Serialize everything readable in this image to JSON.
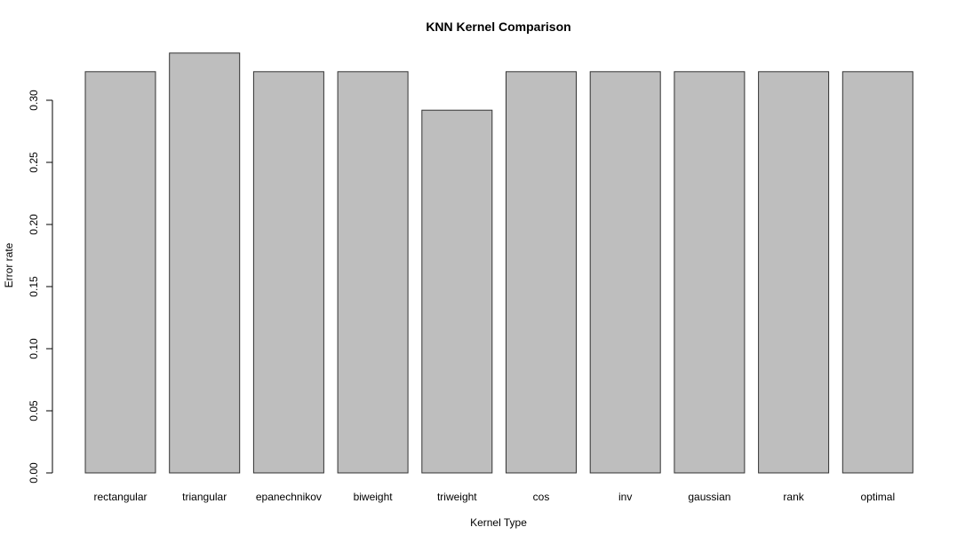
{
  "chart_data": {
    "type": "bar",
    "title": "KNN Kernel Comparison",
    "xlabel": "Kernel Type",
    "ylabel": "Error rate",
    "categories": [
      "rectangular",
      "triangular",
      "epanechnikov",
      "biweight",
      "triweight",
      "cos",
      "inv",
      "gaussian",
      "rank",
      "optimal"
    ],
    "values": [
      0.323,
      0.338,
      0.323,
      0.323,
      0.292,
      0.323,
      0.323,
      0.323,
      0.323,
      0.323
    ],
    "yticks": [
      "0.00",
      "0.05",
      "0.10",
      "0.15",
      "0.20",
      "0.25",
      "0.30"
    ],
    "ylim": [
      0,
      0.34
    ],
    "bar_color": "#bebebe",
    "bar_stroke": "#333333",
    "grid": false,
    "legend": "none"
  }
}
